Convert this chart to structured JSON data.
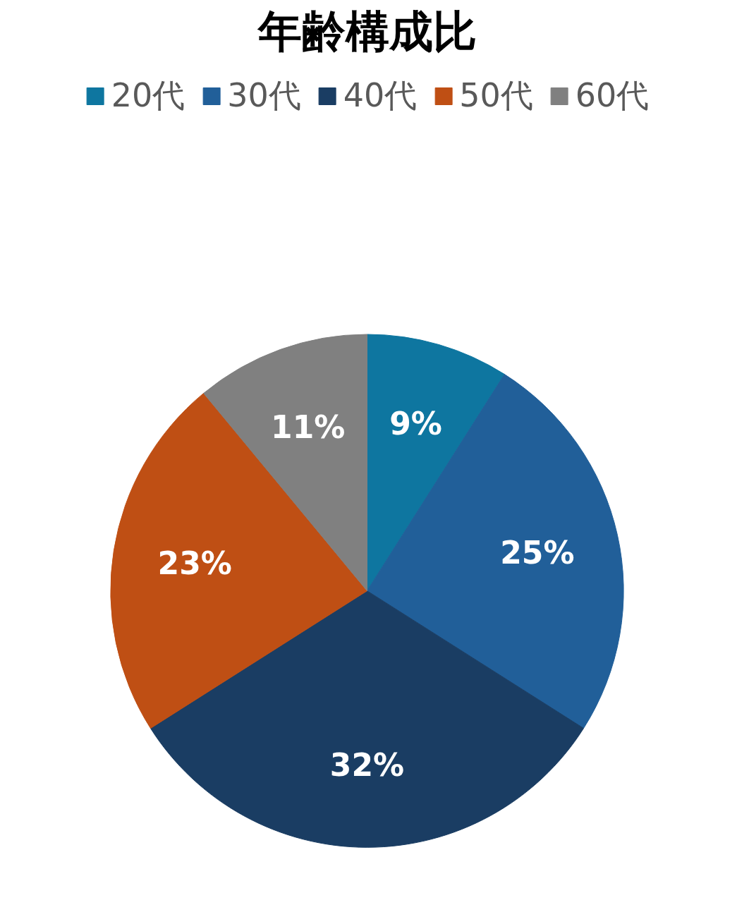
{
  "chart_data": {
    "type": "pie",
    "title": "年齢構成比",
    "categories": [
      "20代",
      "30代",
      "40代",
      "50代",
      "60代"
    ],
    "values": [
      9,
      25,
      32,
      23,
      11
    ],
    "colors": [
      "#0e76a0",
      "#215f99",
      "#1a3d63",
      "#bf4f14",
      "#808080"
    ],
    "value_labels": [
      "9%",
      "25%",
      "32%",
      "23%",
      "11%"
    ],
    "legend": "top"
  }
}
